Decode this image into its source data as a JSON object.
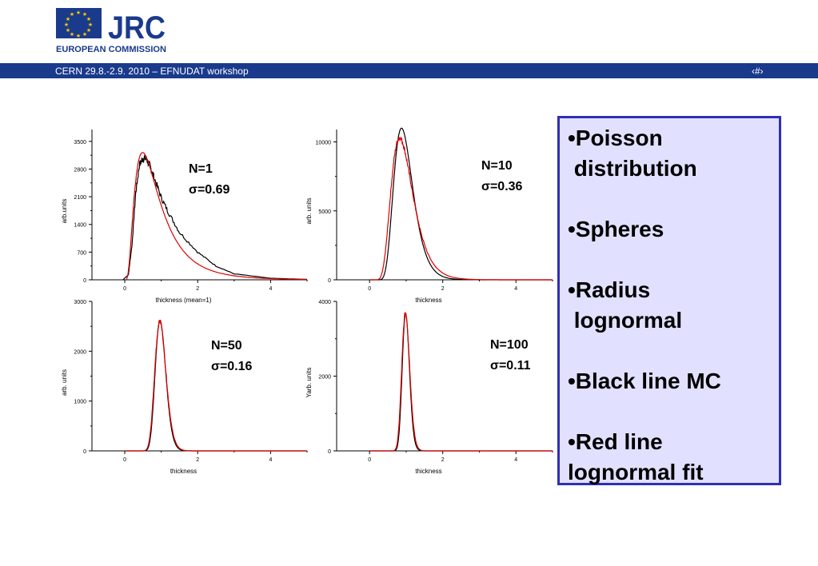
{
  "header": {
    "logo_text": "JRC",
    "logo_subtitle": "EUROPEAN COMMISSION",
    "left_text": "CERN 29.8.-2.9. 2010 – EFNUDAT workshop",
    "right_text": "‹#›"
  },
  "colors": {
    "header_bar": "#1a3a8c",
    "mc_line": "#000000",
    "fit_line": "#dd0000",
    "box_fill": "#e1e1ff",
    "box_border": "#2f2fb6"
  },
  "chart_data": [
    {
      "type": "line",
      "xlabel": "thickness (mean=1)",
      "ylabel": "arb.units",
      "xlim": [
        -0.9,
        5.0
      ],
      "ylim": [
        0,
        3800
      ],
      "xticks": [
        "0",
        "2",
        "4"
      ],
      "yticks": [
        "0",
        "700",
        "1400",
        "2100",
        "2800",
        "3500"
      ],
      "label_lines": [
        "N=1",
        "σ=0.69"
      ],
      "series": [
        {
          "name": "MC",
          "sigma": 0.69,
          "peak": 3080,
          "noise": true,
          "x": [
            -0.05,
            0.1,
            0.2,
            0.3,
            0.4,
            0.5,
            0.6,
            0.7,
            0.8,
            1.0,
            1.2,
            1.5,
            2.0,
            2.5,
            3.0,
            4.0,
            5.0
          ],
          "y": [
            0,
            130,
            900,
            2200,
            2900,
            3080,
            3050,
            2850,
            2600,
            2080,
            1700,
            1200,
            700,
            350,
            150,
            40,
            10
          ]
        }
      ]
    },
    {
      "type": "line",
      "xlabel": "thickness",
      "ylabel": "arb. units",
      "xlim": [
        -0.9,
        5.0
      ],
      "ylim": [
        0,
        10900
      ],
      "xticks": [
        "0",
        "2",
        "4"
      ],
      "yticks": [
        "0",
        "5000",
        "10000"
      ],
      "label_lines": [
        "N=10",
        "σ=0.36"
      ],
      "series": [
        {
          "name": "MC",
          "sigma": 0.3,
          "peak": 11000,
          "noise": false
        },
        {
          "name": "fit",
          "sigma": 0.36,
          "peak": 10300,
          "noise": true
        }
      ]
    },
    {
      "type": "line",
      "xlabel": "thickness",
      "ylabel": "arb. units",
      "xlim": [
        -0.9,
        5.0
      ],
      "ylim": [
        0,
        3000
      ],
      "xticks": [
        "0",
        "2",
        "4"
      ],
      "yticks": [
        "0",
        "1000",
        "2000",
        "3000"
      ],
      "label_lines": [
        "N=50",
        "σ=0.16"
      ],
      "series": [
        {
          "name": "MC",
          "sigma": 0.15,
          "peak": 2620,
          "noise": false
        },
        {
          "name": "fit",
          "sigma": 0.16,
          "peak": 2600,
          "noise": true
        }
      ]
    },
    {
      "type": "line",
      "xlabel": "thickness",
      "ylabel": "Yarb. units",
      "xlim": [
        -0.9,
        5.0
      ],
      "ylim": [
        0,
        4000
      ],
      "xticks": [
        "0",
        "2",
        "4"
      ],
      "yticks": [
        "0",
        "2000",
        "4000"
      ],
      "label_lines": [
        "N=100",
        "σ=0.11"
      ],
      "series": [
        {
          "name": "MC",
          "sigma": 0.1,
          "peak": 3680,
          "noise": false
        },
        {
          "name": "fit",
          "sigma": 0.11,
          "peak": 3700,
          "noise": true
        }
      ]
    }
  ],
  "bullets": [
    "•Poisson\n distribution",
    "•Spheres",
    "•Radius\n lognormal",
    "•Black line MC",
    "•Red line\nlognormal fit"
  ]
}
